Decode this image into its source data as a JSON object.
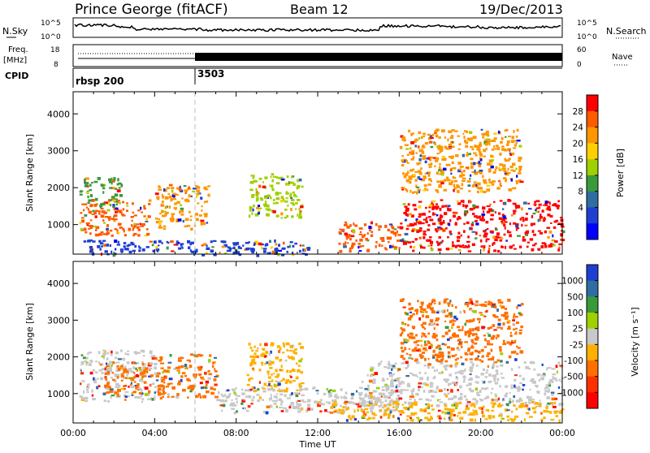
{
  "header": {
    "station": "Prince George (fitACF)",
    "beam": "Beam 12",
    "date": "19/Dec/2013"
  },
  "noise_panel": {
    "left_label": "N.Sky",
    "right_label": "N.Search",
    "ticks_left": [
      "10^5",
      "10^0"
    ],
    "ticks_right": [
      "10^5",
      "10^0"
    ]
  },
  "freq_panel": {
    "left_label_top": "Freq.",
    "left_label_bottom": "[MHz]",
    "right_label": "Nave",
    "ticks_left": [
      "18",
      "8"
    ],
    "ticks_right": [
      "60",
      "0"
    ]
  },
  "cpid": {
    "label": "CPID",
    "segments": [
      {
        "name": "rbsp 200",
        "start_hour": 0
      },
      {
        "name": "3503",
        "start_hour": 6
      }
    ]
  },
  "xaxis": {
    "label": "Time UT",
    "ticks": [
      "00:00",
      "04:00",
      "08:00",
      "12:00",
      "16:00",
      "20:00",
      "00:00"
    ]
  },
  "chart_data": [
    {
      "type": "heatmap",
      "title": "",
      "xlabel": "Time UT",
      "ylabel": "Slant Range [km]",
      "x_range_hours": [
        0,
        24
      ],
      "ylim": [
        200,
        4600
      ],
      "yticks": [
        "1000",
        "2000",
        "3000",
        "4000"
      ],
      "colorbar": {
        "label": "Power [dB]",
        "ticks": [
          "28",
          "24",
          "20",
          "16",
          "12",
          "8",
          "4"
        ],
        "colors": [
          "#ff0000",
          "#ff5a00",
          "#ff9600",
          "#ffd000",
          "#9fd000",
          "#3a9a3a",
          "#2f6ea0",
          "#1f3fd0",
          "#0000ff"
        ]
      },
      "regions": [
        {
          "t0": 0.3,
          "t1": 3.7,
          "r0": 700,
          "r1": 1700,
          "color": "#ff5a00"
        },
        {
          "t0": 0.3,
          "t1": 2.4,
          "r0": 1500,
          "r1": 2300,
          "color": "#3a9a3a"
        },
        {
          "t0": 4.0,
          "t1": 6.6,
          "r0": 900,
          "r1": 2100,
          "color": "#ff9600"
        },
        {
          "t0": 8.6,
          "t1": 11.2,
          "r0": 1200,
          "r1": 2400,
          "color": "#9fd000"
        },
        {
          "t0": 0.5,
          "t1": 11.5,
          "r0": 200,
          "r1": 600,
          "color": "#1f3fd0"
        },
        {
          "t0": 13.0,
          "t1": 16.0,
          "r0": 300,
          "r1": 1100,
          "color": "#ff5a00"
        },
        {
          "t0": 16.0,
          "t1": 24.0,
          "r0": 300,
          "r1": 1700,
          "color": "#ff0000"
        },
        {
          "t0": 16.0,
          "t1": 22.0,
          "r0": 1900,
          "r1": 3600,
          "color": "#ff9600"
        }
      ]
    },
    {
      "type": "heatmap",
      "title": "",
      "xlabel": "Time UT",
      "ylabel": "Slant Range [km]",
      "x_range_hours": [
        0,
        24
      ],
      "ylim": [
        200,
        4600
      ],
      "yticks": [
        "1000",
        "2000",
        "3000",
        "4000"
      ],
      "colorbar": {
        "label": "Velocity [m s⁻¹]",
        "ticks": [
          "1000",
          "500",
          "100",
          "25",
          "-25",
          "-100",
          "-500",
          "-1000"
        ],
        "colors": [
          "#1f3fd0",
          "#2f6ea0",
          "#3a9a3a",
          "#9fd000",
          "#c8c8c8",
          "#ffb000",
          "#ff7000",
          "#ff3000",
          "#ff0000"
        ]
      },
      "regions": [
        {
          "t0": 0.3,
          "t1": 4.0,
          "r0": 800,
          "r1": 2200,
          "color": "#c8c8c8"
        },
        {
          "t0": 1.5,
          "t1": 3.8,
          "r0": 1000,
          "r1": 1900,
          "color": "#ff7000"
        },
        {
          "t0": 4.0,
          "t1": 7.0,
          "r0": 900,
          "r1": 2100,
          "color": "#ff7000"
        },
        {
          "t0": 8.5,
          "t1": 11.2,
          "r0": 1100,
          "r1": 2400,
          "color": "#ffb000"
        },
        {
          "t0": 7.0,
          "t1": 16.0,
          "r0": 500,
          "r1": 1200,
          "color": "#c8c8c8"
        },
        {
          "t0": 14.0,
          "t1": 24.0,
          "r0": 700,
          "r1": 1900,
          "color": "#c8c8c8"
        },
        {
          "t0": 16.0,
          "t1": 22.0,
          "r0": 1900,
          "r1": 3600,
          "color": "#ff7000"
        },
        {
          "t0": 12.5,
          "t1": 24.0,
          "r0": 300,
          "r1": 800,
          "color": "#ffb000"
        }
      ]
    }
  ]
}
